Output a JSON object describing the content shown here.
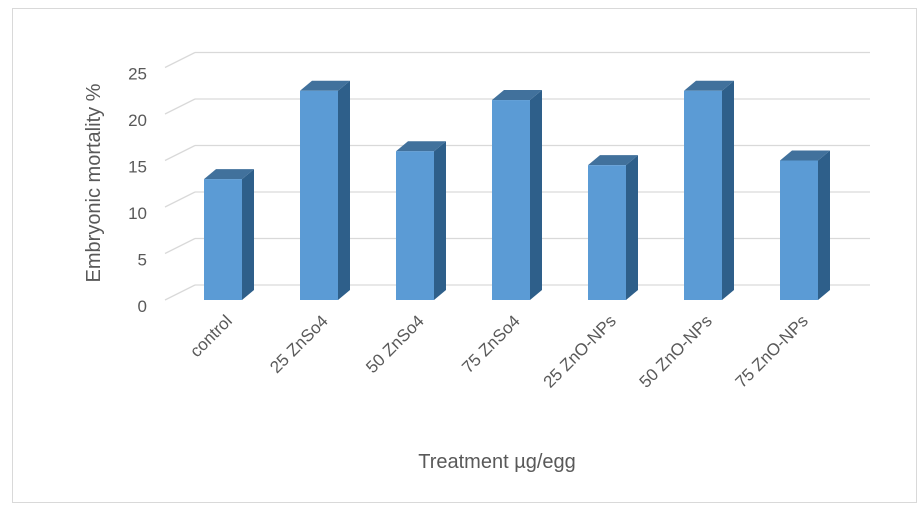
{
  "chart_data": {
    "type": "bar",
    "style": "3d-clustered-column",
    "categories": [
      "control",
      "25 ZnSo4",
      "50 ZnSo4",
      "75 ZnSo4",
      "25 ZnO-NPs",
      "50 ZnO-NPs",
      "75 ZnO-NPs"
    ],
    "values": [
      13,
      22.5,
      16,
      21.5,
      14.5,
      22.5,
      15
    ],
    "xlabel": "Treatment µg/egg",
    "ylabel": "Embryonic mortality %",
    "ylim": [
      0,
      25
    ],
    "yticks": [
      "0",
      "5",
      "10",
      "15",
      "20",
      "25"
    ],
    "grid": true,
    "legend": "none",
    "colors": {
      "bar_front": "#5b9bd5",
      "bar_side": "#2e5f8a",
      "bar_top": "#41719c",
      "grid": "#d9d9d9",
      "text": "#595959"
    }
  }
}
